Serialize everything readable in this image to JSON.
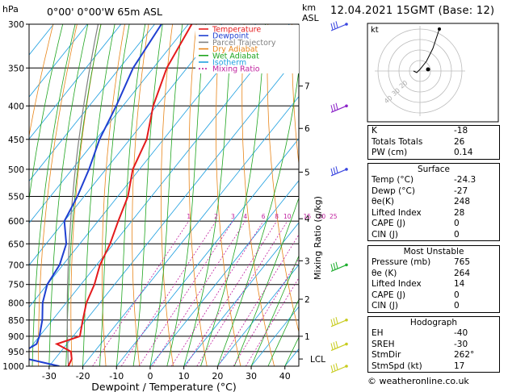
{
  "header": {
    "hpa": "hPa",
    "location": "0°00' 0°00'W 65m ASL",
    "km": "km",
    "asl": "ASL",
    "date": "12.04.2021 15GMT (Base: 12)"
  },
  "legend": [
    {
      "label": "Temperature",
      "color": "#e41a1c"
    },
    {
      "label": "Dewpoint",
      "color": "#1f3fd1"
    },
    {
      "label": "Parcel Trajectory",
      "color": "#808080"
    },
    {
      "label": "Dry Adiabat",
      "color": "#e8861a"
    },
    {
      "label": "Wet Adiabat",
      "color": "#1fa51f"
    },
    {
      "label": "Isotherm",
      "color": "#1fa0e0"
    },
    {
      "label": "Mixing Ratio",
      "color": "#c0209f"
    }
  ],
  "axes": {
    "xlabel": "Dewpoint / Temperature (°C)",
    "ylabel_right": "Mixing Ratio (g/kg)",
    "pressure_ticks": [
      "300",
      "350",
      "400",
      "450",
      "500",
      "550",
      "600",
      "650",
      "700",
      "750",
      "800",
      "850",
      "900",
      "950",
      "1000"
    ],
    "temp_ticks": [
      "-30",
      "-20",
      "-10",
      "0",
      "10",
      "20",
      "30",
      "40"
    ],
    "km_ticks": [
      "7",
      "6",
      "5",
      "4",
      "3",
      "2",
      "1"
    ],
    "lcl_label": "LCL",
    "mixing_ratio_labels": [
      "1",
      "2",
      "3",
      "4",
      "6",
      "8",
      "10",
      "15",
      "20",
      "25"
    ]
  },
  "chart_data": {
    "type": "skew-t log-p",
    "xlim": [
      -35,
      40
    ],
    "ylim_hpa": [
      1000,
      300
    ],
    "km_levels": [
      {
        "km": 1,
        "hpa": 900
      },
      {
        "km": 2,
        "hpa": 790
      },
      {
        "km": 3,
        "hpa": 690
      },
      {
        "km": 4,
        "hpa": 595
      },
      {
        "km": 5,
        "hpa": 505
      },
      {
        "km": 6,
        "hpa": 433
      },
      {
        "km": 7,
        "hpa": 373
      }
    ],
    "lcl_hpa": 975,
    "temperature": {
      "name": "Temperature",
      "p": [
        1000,
        975,
        950,
        925,
        900,
        850,
        800,
        750,
        700,
        650,
        600,
        550,
        500,
        450,
        400,
        350,
        300
      ],
      "t": [
        -24.3,
        -25,
        -27,
        -33,
        -28,
        -31,
        -34,
        -36,
        -39,
        -41,
        -44,
        -47,
        -52,
        -55,
        -61,
        -66,
        -69
      ]
    },
    "dewpoint": {
      "name": "Dewpoint",
      "p": [
        1000,
        975,
        950,
        925,
        900,
        850,
        800,
        750,
        700,
        650,
        600,
        550,
        500,
        450,
        400,
        350,
        300
      ],
      "t": [
        -27,
        -38,
        -41,
        -39,
        -40,
        -43,
        -47,
        -50,
        -51,
        -54,
        -60,
        -62,
        -65,
        -69,
        -72,
        -76,
        -78
      ]
    },
    "wind_barbs": [
      {
        "p": 300,
        "color": "#3a46e0"
      },
      {
        "p": 400,
        "color": "#8b22c8"
      },
      {
        "p": 500,
        "color": "#3a46e0"
      },
      {
        "p": 700,
        "color": "#1fae2f"
      },
      {
        "p": 850,
        "color": "#c8cc20"
      },
      {
        "p": 925,
        "color": "#c8cc20"
      },
      {
        "p": 1000,
        "color": "#c8cc20"
      }
    ]
  },
  "hodograph": {
    "unit": "kt",
    "ring_labels": [
      "40",
      "30",
      "20"
    ],
    "trace_u": [
      -4,
      -2,
      0,
      4,
      6,
      8,
      10,
      12
    ],
    "trace_v": [
      0,
      -1,
      1,
      6,
      10,
      14,
      20,
      26
    ]
  },
  "indices": [
    {
      "label": "K",
      "value": "-18"
    },
    {
      "label": "Totals Totals",
      "value": "26"
    },
    {
      "label": "PW (cm)",
      "value": "0.14"
    }
  ],
  "surface": {
    "title": "Surface",
    "rows": [
      {
        "label": "Temp (°C)",
        "value": "-24.3"
      },
      {
        "label": "Dewp (°C)",
        "value": "-27"
      },
      {
        "label": "θe(K)",
        "value": "248"
      },
      {
        "label": "Lifted Index",
        "value": "28"
      },
      {
        "label": "CAPE (J)",
        "value": "0"
      },
      {
        "label": "CIN (J)",
        "value": "0"
      }
    ]
  },
  "most_unstable": {
    "title": "Most Unstable",
    "rows": [
      {
        "label": "Pressure (mb)",
        "value": "765"
      },
      {
        "label": "θe (K)",
        "value": "264"
      },
      {
        "label": "Lifted Index",
        "value": "14"
      },
      {
        "label": "CAPE (J)",
        "value": "0"
      },
      {
        "label": "CIN (J)",
        "value": "0"
      }
    ]
  },
  "hodograph_table": {
    "title": "Hodograph",
    "rows": [
      {
        "label": "EH",
        "value": "-40"
      },
      {
        "label": "SREH",
        "value": "-30"
      },
      {
        "label": "StmDir",
        "value": "262°"
      },
      {
        "label": "StmSpd (kt)",
        "value": "17"
      }
    ]
  },
  "copyright": "© weatheronline.co.uk"
}
